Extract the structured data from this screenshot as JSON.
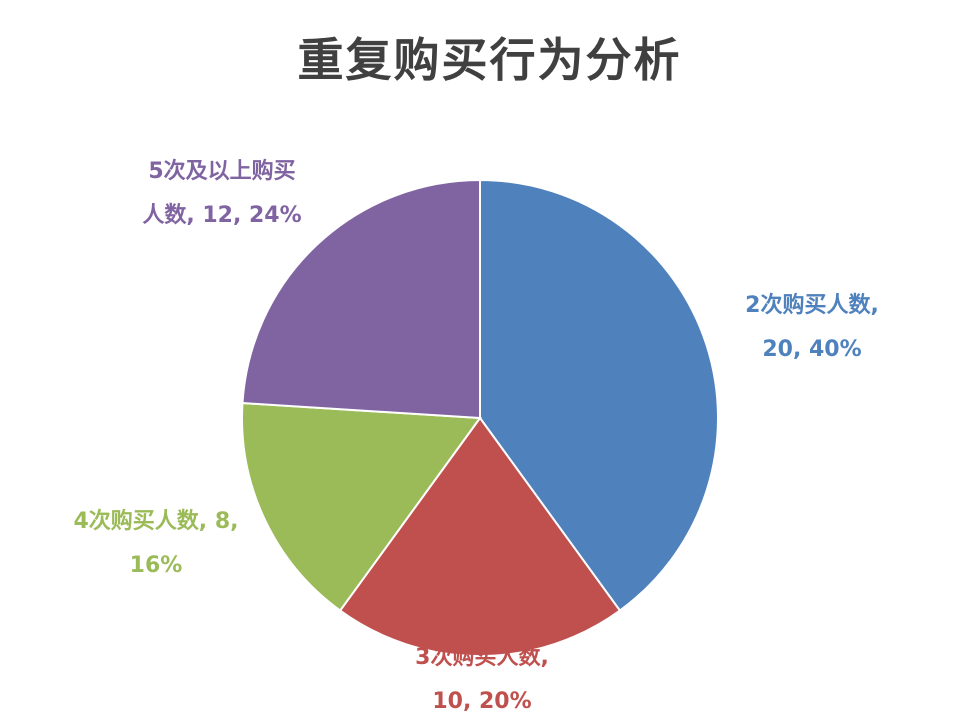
{
  "chart_data": {
    "type": "pie",
    "title": "重复购买行为分析",
    "slices": [
      {
        "name": "2次购买人数",
        "value": 20,
        "percent": "40%",
        "color": "#4F81BD",
        "label_lines": [
          "2次购买人数,",
          "20, 40%"
        ]
      },
      {
        "name": "3次购买人数",
        "value": 10,
        "percent": "20%",
        "color": "#C0504D",
        "label_lines": [
          "3次购买人数,",
          "10, 20%"
        ]
      },
      {
        "name": "4次购买人数",
        "value": 8,
        "percent": "16%",
        "color": "#9BBB59",
        "label_lines": [
          "4次购买人数, 8,",
          "16%"
        ]
      },
      {
        "name": "5次及以上购买人数",
        "value": 12,
        "percent": "24%",
        "color": "#8064A2",
        "label_lines": [
          "5次及以上购买",
          "人数, 12, 24%"
        ]
      }
    ],
    "start_angle_deg": 0,
    "direction": "clockwise",
    "legend": "none"
  }
}
